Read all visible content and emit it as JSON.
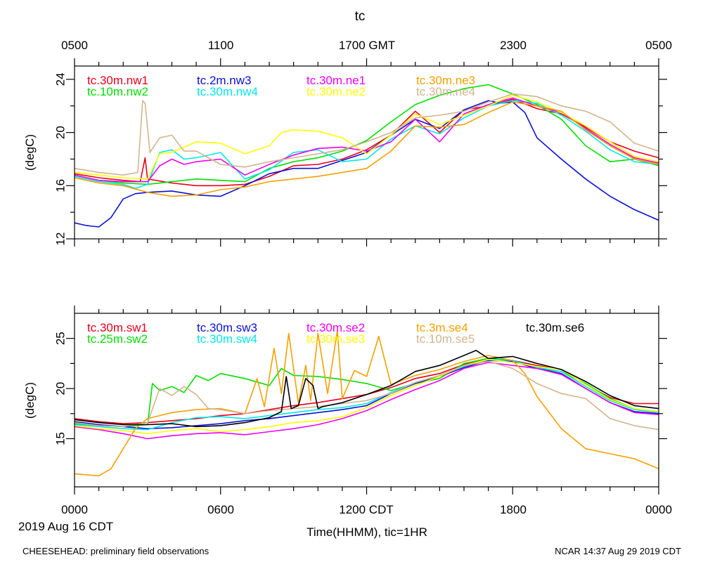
{
  "figure": {
    "top_title": "tc",
    "top_axis_ticks": [
      "0500",
      "1100",
      "1700 GMT",
      "2300",
      "0500"
    ],
    "bottom_axis_ticks": [
      "0000",
      "0600",
      "1200 CDT",
      "1800",
      "0000"
    ],
    "date_label": "2019 Aug 16 CDT",
    "xlabel": "Time(HHMM), tic=1HR",
    "footer_left": "CHEESEHEAD: preliminary field observations",
    "footer_right": "NCAR 14:37 Aug 29 2019 CDT"
  },
  "chart_data": [
    {
      "type": "line",
      "title": "tc",
      "ylabel": "(degC)",
      "xlabel": "Time(HHMM), tic=1HR",
      "xlim": [
        0,
        24
      ],
      "ylim": [
        12,
        25
      ],
      "y_ticks": [
        "12",
        "16",
        "20",
        "24"
      ],
      "y_tick_values": [
        12,
        16,
        20,
        24
      ],
      "series": [
        {
          "name": "tc.30m.nw1",
          "color": "#e8001c",
          "x": [
            0,
            1,
            2,
            2.7,
            2.9,
            3,
            4,
            5,
            6,
            7,
            8,
            9,
            10,
            11,
            12,
            13,
            14,
            15,
            16,
            17,
            18,
            19,
            20,
            21,
            22,
            23,
            24
          ],
          "y": [
            16.9,
            16.6,
            16.4,
            16.3,
            18.1,
            16.5,
            16.2,
            16.0,
            16.0,
            16.1,
            16.7,
            17.5,
            17.6,
            18.0,
            18.7,
            19.8,
            21.6,
            20.0,
            21.7,
            22.0,
            22.5,
            21.8,
            21.4,
            20.4,
            19.3,
            18.6,
            18.1
          ]
        },
        {
          "name": "tc.10m.nw2",
          "color": "#00e000",
          "x": [
            0,
            1,
            2,
            3,
            4,
            5,
            6,
            7,
            8,
            9,
            10,
            11,
            12,
            13,
            14,
            15,
            16,
            17,
            18,
            19,
            20,
            21,
            22,
            23,
            24
          ],
          "y": [
            16.8,
            16.4,
            16.2,
            16.1,
            16.3,
            16.5,
            16.4,
            16.3,
            17.3,
            17.8,
            18.1,
            18.6,
            19.4,
            20.8,
            22.1,
            22.8,
            23.3,
            23.6,
            22.9,
            22.1,
            21.0,
            19.0,
            17.8,
            18.0,
            17.5
          ]
        },
        {
          "name": "tc.2m.nw3",
          "color": "#0a10d8",
          "x": [
            0,
            0.5,
            1,
            1.5,
            2,
            2.5,
            3,
            4,
            5,
            6,
            7,
            8,
            9,
            10,
            11,
            12,
            13,
            14,
            15,
            16,
            17,
            17.5,
            18,
            18.5,
            19,
            20,
            21,
            22,
            23,
            24
          ],
          "y": [
            13.2,
            13.0,
            12.9,
            13.6,
            15.0,
            15.4,
            15.5,
            15.6,
            15.3,
            15.2,
            16.0,
            16.9,
            17.3,
            17.3,
            17.9,
            18.5,
            19.8,
            21.0,
            20.3,
            21.7,
            22.4,
            22.2,
            22.3,
            21.5,
            19.6,
            18.0,
            16.5,
            15.2,
            14.2,
            13.4
          ]
        },
        {
          "name": "tc.30m.nw4",
          "color": "#00e8e8",
          "x": [
            0,
            1,
            2,
            2.5,
            3,
            3.5,
            4,
            4.5,
            5,
            6,
            7,
            8,
            9,
            10,
            11,
            12,
            13,
            14,
            15,
            16,
            17,
            18,
            19,
            20,
            21,
            22,
            23,
            24
          ],
          "y": [
            16.7,
            16.3,
            16.1,
            15.8,
            16.1,
            18.5,
            18.7,
            18.0,
            18.1,
            18.5,
            16.5,
            17.2,
            18.5,
            18.7,
            17.8,
            18.0,
            19.5,
            20.5,
            19.9,
            21.1,
            22.0,
            22.4,
            22.2,
            21.3,
            20.1,
            18.7,
            17.8,
            17.6
          ]
        },
        {
          "name": "tc.30m.ne1",
          "color": "#f000f0",
          "x": [
            0,
            1,
            2,
            3,
            3.5,
            4,
            4.5,
            5,
            6,
            7,
            8,
            9,
            10,
            11,
            12,
            13,
            14,
            15,
            16,
            17,
            18,
            19,
            20,
            21,
            22,
            23,
            24
          ],
          "y": [
            16.8,
            16.4,
            16.3,
            16.3,
            17.5,
            18.0,
            17.6,
            17.8,
            18.0,
            16.8,
            17.6,
            18.3,
            18.8,
            18.9,
            18.6,
            19.3,
            21.0,
            19.3,
            21.4,
            22.1,
            22.6,
            22.0,
            21.5,
            20.3,
            19.1,
            18.1,
            17.7
          ]
        },
        {
          "name": "tc.30m.ne2",
          "color": "#ffff00",
          "x": [
            0,
            1,
            2,
            3,
            3.5,
            4,
            5,
            6,
            7,
            8,
            8.5,
            9,
            10,
            11,
            12,
            13,
            14,
            15,
            16,
            17,
            18,
            19,
            20,
            21,
            22,
            23,
            24
          ],
          "y": [
            17.0,
            16.8,
            16.6,
            16.5,
            18.4,
            18.5,
            19.3,
            19.2,
            18.4,
            19.0,
            20.0,
            20.2,
            20.1,
            19.6,
            18.4,
            19.8,
            21.4,
            20.6,
            21.3,
            22.0,
            22.8,
            22.3,
            21.5,
            20.5,
            19.3,
            18.2,
            17.8
          ]
        },
        {
          "name": "tc.30m.ne3",
          "color": "#f5a000",
          "x": [
            0,
            1,
            2,
            3,
            4,
            5,
            6,
            7,
            8,
            9,
            10,
            11,
            12,
            13,
            14,
            15,
            16,
            17,
            18,
            19,
            20,
            21,
            22,
            23,
            24
          ],
          "y": [
            16.6,
            16.2,
            16.0,
            15.5,
            15.2,
            15.3,
            15.7,
            15.9,
            16.3,
            16.5,
            16.7,
            17.0,
            17.3,
            18.6,
            20.5,
            20.4,
            20.6,
            21.5,
            22.3,
            22.0,
            21.6,
            20.2,
            19.0,
            18.0,
            17.6
          ]
        },
        {
          "name": "tc.30m.ne4",
          "color": "#d2b48c",
          "x": [
            0,
            1,
            2,
            2.6,
            2.8,
            2.9,
            3.1,
            3.5,
            4,
            4.5,
            5,
            6,
            7,
            8,
            9,
            10,
            11,
            12,
            13,
            14,
            15,
            16,
            17,
            18,
            19,
            20,
            21,
            22,
            23,
            24
          ],
          "y": [
            17.3,
            17.0,
            16.8,
            17.0,
            22.4,
            22.2,
            18.5,
            19.6,
            19.8,
            18.6,
            18.6,
            17.6,
            17.4,
            17.8,
            18.1,
            18.4,
            18.7,
            19.3,
            20.0,
            21.1,
            21.3,
            21.6,
            22.3,
            22.9,
            22.7,
            22.0,
            21.6,
            20.8,
            19.2,
            18.6
          ]
        }
      ]
    },
    {
      "type": "line",
      "title": "tc",
      "ylabel": "(degC)",
      "xlabel": "Time(HHMM), tic=1HR",
      "xlim": [
        0,
        24
      ],
      "ylim": [
        10.2,
        27.5
      ],
      "y_ticks": [
        "15",
        "20",
        "25"
      ],
      "y_tick_values": [
        15,
        20,
        25
      ],
      "series": [
        {
          "name": "tc.30m.sw1",
          "color": "#e8001c",
          "x": [
            0,
            1,
            2,
            3,
            4,
            5,
            6,
            7,
            8,
            9,
            10,
            11,
            12,
            13,
            14,
            15,
            16,
            17,
            18,
            19,
            20,
            21,
            22,
            23,
            24
          ],
          "y": [
            17.0,
            16.7,
            16.5,
            16.6,
            16.8,
            17.0,
            17.3,
            17.5,
            17.9,
            18.3,
            18.6,
            19.0,
            19.4,
            20.1,
            21.0,
            21.5,
            22.4,
            23.0,
            22.8,
            22.3,
            21.9,
            20.4,
            19.1,
            18.5,
            18.5
          ]
        },
        {
          "name": "tc.25m.sw2",
          "color": "#00e000",
          "x": [
            0,
            1,
            2,
            3,
            3.2,
            3.5,
            4,
            4.5,
            5,
            5.5,
            6,
            7,
            8,
            8.5,
            9,
            10,
            11,
            12,
            13,
            14,
            15,
            16,
            17,
            18,
            19,
            20,
            21,
            22,
            23,
            24
          ],
          "y": [
            16.5,
            16.3,
            16.2,
            16.4,
            20.5,
            19.8,
            20.2,
            19.6,
            21.3,
            20.8,
            21.5,
            21.0,
            20.3,
            22.0,
            21.3,
            21.2,
            20.9,
            20.5,
            19.8,
            20.5,
            21.0,
            22.5,
            23.0,
            22.8,
            22.0,
            21.7,
            20.5,
            19.0,
            18.0,
            17.6
          ]
        },
        {
          "name": "tc.30m.sw3",
          "color": "#0a10d8",
          "x": [
            0,
            1,
            2,
            3,
            4,
            5,
            6,
            7,
            8,
            9,
            10,
            11,
            12,
            13,
            14,
            15,
            16,
            17,
            18,
            19,
            20,
            21,
            22,
            23,
            24
          ],
          "y": [
            16.7,
            16.4,
            16.2,
            16.0,
            16.1,
            16.3,
            16.5,
            16.8,
            17.0,
            17.3,
            17.6,
            17.9,
            18.3,
            19.5,
            20.5,
            21.2,
            22.1,
            22.8,
            22.7,
            22.0,
            21.5,
            20.0,
            18.6,
            17.7,
            17.5
          ]
        },
        {
          "name": "tc.30m.sw4",
          "color": "#00e8e8",
          "x": [
            0,
            1,
            2,
            3,
            4,
            5,
            6,
            7,
            8,
            9,
            10,
            11,
            12,
            13,
            14,
            15,
            16,
            17,
            18,
            19,
            20,
            21,
            22,
            23,
            24
          ],
          "y": [
            16.4,
            16.2,
            16.0,
            15.9,
            16.6,
            17.1,
            17.2,
            17.0,
            17.3,
            17.6,
            17.9,
            18.1,
            18.5,
            19.6,
            20.6,
            21.3,
            22.2,
            22.9,
            22.8,
            22.1,
            21.7,
            20.2,
            18.8,
            17.9,
            17.6
          ]
        },
        {
          "name": "tc.30m.se2",
          "color": "#f000f0",
          "x": [
            0,
            1,
            2,
            3,
            4,
            5,
            6,
            7,
            8,
            9,
            10,
            11,
            12,
            13,
            14,
            15,
            16,
            17,
            18,
            19,
            20,
            21,
            22,
            23,
            24
          ],
          "y": [
            16.2,
            15.9,
            15.5,
            15.0,
            15.3,
            15.5,
            15.6,
            15.4,
            15.7,
            16.0,
            16.4,
            17.0,
            17.8,
            18.9,
            19.9,
            20.8,
            22.0,
            22.6,
            22.3,
            22.0,
            21.4,
            20.0,
            18.6,
            17.6,
            17.4
          ]
        },
        {
          "name": "tc.30m.se3",
          "color": "#ffff00",
          "x": [
            0,
            1,
            2,
            3,
            4,
            5,
            6,
            7,
            8,
            9,
            10,
            11,
            12,
            13,
            14,
            15,
            16,
            17,
            18,
            19,
            20,
            21,
            22,
            23,
            24
          ],
          "y": [
            16.3,
            16.0,
            15.8,
            15.5,
            15.8,
            16.0,
            15.7,
            15.9,
            16.2,
            16.6,
            16.8,
            17.2,
            18.1,
            19.3,
            20.3,
            21.2,
            22.3,
            22.9,
            22.6,
            22.2,
            21.9,
            20.4,
            18.9,
            18.0,
            17.7
          ]
        },
        {
          "name": "tc.3m.se4",
          "color": "#f5a000",
          "x": [
            0,
            0.5,
            1,
            1.5,
            2,
            2.5,
            3,
            3.5,
            4,
            5,
            6,
            7,
            7.5,
            7.8,
            8.2,
            8.5,
            8.8,
            9.2,
            9.5,
            9.7,
            10,
            10.4,
            10.8,
            11,
            11.5,
            12,
            12.5,
            13,
            14,
            15,
            16,
            17,
            18,
            18.5,
            19,
            20,
            21,
            22,
            23,
            24
          ],
          "y": [
            11.5,
            11.4,
            11.3,
            12.0,
            14.0,
            16.0,
            17.0,
            17.3,
            17.6,
            17.9,
            18.0,
            17.5,
            21.0,
            18.2,
            24.0,
            19.5,
            25.5,
            18.5,
            22.3,
            18.8,
            25.5,
            19.5,
            25.8,
            19.0,
            21.8,
            21.2,
            25.2,
            20.4,
            21.3,
            21.9,
            22.7,
            23.3,
            22.8,
            21.5,
            19.2,
            16.0,
            14.0,
            13.5,
            13.0,
            12.0
          ]
        },
        {
          "name": "tc.10m.se5",
          "color": "#d2b48c",
          "x": [
            0,
            1,
            2,
            3,
            3.5,
            4,
            4.5,
            5,
            5.5,
            6,
            7,
            8,
            9,
            10,
            11,
            12,
            13,
            14,
            15,
            16,
            17,
            18,
            19,
            20,
            21,
            22,
            23,
            24
          ],
          "y": [
            16.6,
            16.3,
            16.2,
            16.6,
            20.0,
            19.3,
            20.2,
            19.4,
            18.0,
            17.9,
            17.5,
            17.8,
            18.0,
            18.2,
            18.5,
            18.8,
            19.5,
            20.6,
            21.3,
            22.3,
            22.7,
            22.0,
            20.5,
            19.5,
            19.0,
            17.0,
            16.3,
            15.9
          ]
        },
        {
          "name": "tc.30m.se6",
          "color": "#000000",
          "x": [
            0,
            1,
            2,
            3,
            4,
            5,
            6,
            7,
            8,
            8.5,
            8.7,
            8.9,
            9.2,
            9.5,
            9.8,
            10,
            10.2,
            11,
            12,
            13,
            14,
            15,
            16,
            16.5,
            17,
            18,
            19,
            20,
            21,
            22,
            23,
            24
          ],
          "y": [
            16.9,
            16.6,
            16.4,
            16.4,
            16.5,
            16.2,
            16.3,
            16.6,
            17.1,
            17.7,
            21.2,
            18.0,
            18.3,
            21.0,
            20.3,
            18.0,
            18.2,
            18.6,
            19.4,
            20.3,
            21.7,
            22.3,
            23.3,
            23.8,
            23.0,
            23.2,
            22.5,
            21.9,
            20.7,
            19.3,
            18.3,
            18.0
          ]
        }
      ]
    }
  ]
}
